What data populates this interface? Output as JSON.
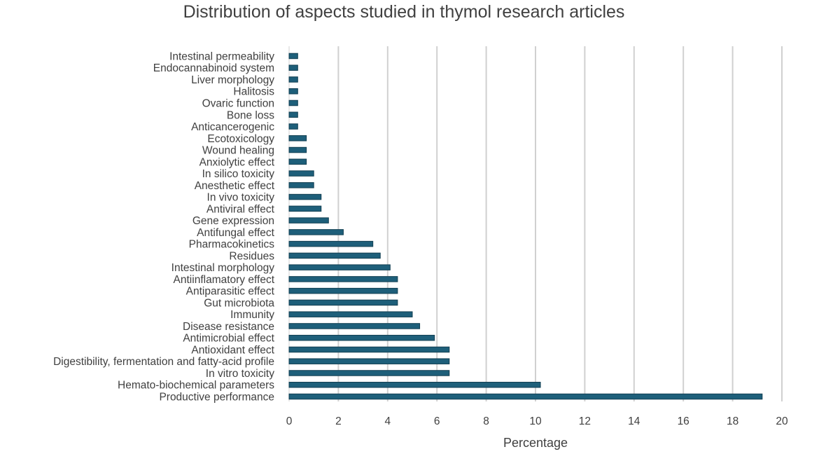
{
  "chart_data": {
    "type": "bar",
    "orientation": "horizontal",
    "title": "Distribution of aspects studied in thymol research articles",
    "xlabel": "Percentage",
    "ylabel": "",
    "xlim": [
      0,
      20
    ],
    "x_ticks": [
      "0",
      "2",
      "4",
      "6",
      "8",
      "10",
      "12",
      "14",
      "16",
      "18",
      "20"
    ],
    "grid": "vertical",
    "legend": "none",
    "bar_color": "#1e5f7a",
    "categories": [
      "Productive performance",
      "Hemato-biochemical parameters",
      "In vitro toxicity",
      "Digestibility, fermentation and fatty-acid profile",
      "Antioxidant effect",
      "Antimicrobial effect",
      "Disease resistance",
      "Immunity",
      "Gut microbiota",
      "Antiparasitic effect",
      "Antiinflamatory effect",
      "Intestinal morphology",
      "Residues",
      "Pharmacokinetics",
      "Antifungal effect",
      "Gene expression",
      "Antiviral effect",
      "In vivo toxicity",
      "Anesthetic effect",
      "In silico toxicity",
      "Anxiolytic effect",
      "Wound healing",
      "Ecotoxicology",
      "Anticancerogenic",
      "Bone loss",
      "Ovaric function",
      "Halitosis",
      "Liver morphology",
      "Endocannabinoid system",
      "Intestinal permeability"
    ],
    "values": [
      19.2,
      10.2,
      6.5,
      6.5,
      6.5,
      5.9,
      5.3,
      5.0,
      4.4,
      4.4,
      4.4,
      4.1,
      3.7,
      3.4,
      2.2,
      1.6,
      1.3,
      1.3,
      1.0,
      1.0,
      0.7,
      0.7,
      0.7,
      0.35,
      0.35,
      0.35,
      0.35,
      0.35,
      0.35,
      0.35
    ]
  }
}
